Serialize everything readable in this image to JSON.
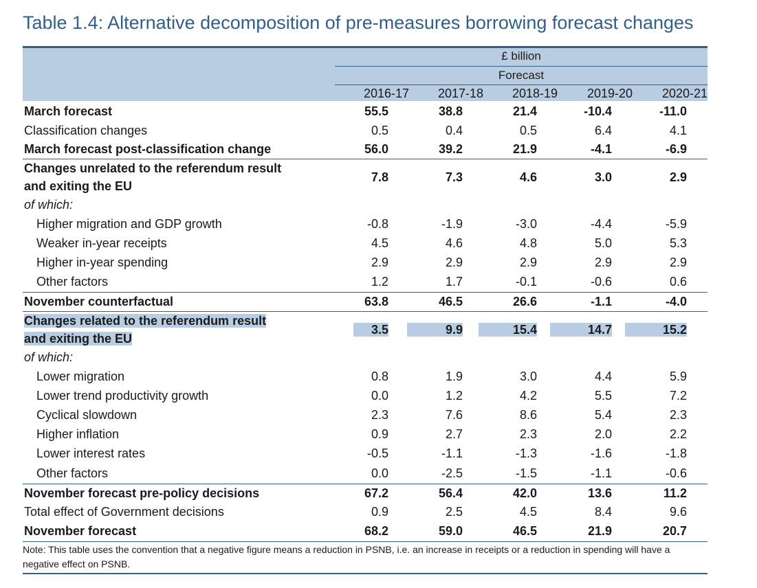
{
  "title": "Table 1.4: Alternative decomposition of pre-measures borrowing forecast changes",
  "header": {
    "unit": "£ billion",
    "forecast_label": "Forecast",
    "years": [
      "2016-17",
      "2017-18",
      "2018-19",
      "2019-20",
      "2020-21"
    ]
  },
  "rows": [
    {
      "label": "March forecast",
      "values": [
        "55.5",
        "38.8",
        "21.4",
        "-10.4",
        "-11.0"
      ]
    },
    {
      "label": "Classification changes",
      "values": [
        "0.5",
        "0.4",
        "0.5",
        "6.4",
        "4.1"
      ]
    },
    {
      "label": "March forecast post-classification change",
      "values": [
        "56.0",
        "39.2",
        "21.9",
        "-4.1",
        "-6.9"
      ]
    },
    {
      "label_line1": "Changes unrelated to the referendum result",
      "label_line2": "and exiting the EU",
      "values": [
        "7.8",
        "7.3",
        "4.6",
        "3.0",
        "2.9"
      ]
    },
    {
      "label": "of which:"
    },
    {
      "label": "Higher migration and GDP growth",
      "values": [
        "-0.8",
        "-1.9",
        "-3.0",
        "-4.4",
        "-5.9"
      ]
    },
    {
      "label": "Weaker in-year receipts",
      "values": [
        "4.5",
        "4.6",
        "4.8",
        "5.0",
        "5.3"
      ]
    },
    {
      "label": "Higher in-year spending",
      "values": [
        "2.9",
        "2.9",
        "2.9",
        "2.9",
        "2.9"
      ]
    },
    {
      "label": "Other factors",
      "values": [
        "1.2",
        "1.7",
        "-0.1",
        "-0.6",
        "0.6"
      ]
    },
    {
      "label": "November counterfactual",
      "values": [
        "63.8",
        "46.5",
        "26.6",
        "-1.1",
        "-4.0"
      ]
    },
    {
      "label_line1": "Changes related to the referendum result",
      "label_line2": "and exiting the EU",
      "values": [
        "3.5",
        "9.9",
        "15.4",
        "14.7",
        "15.2"
      ]
    },
    {
      "label": "of which:"
    },
    {
      "label": "Lower migration",
      "values": [
        "0.8",
        "1.9",
        "3.0",
        "4.4",
        "5.9"
      ]
    },
    {
      "label": "Lower trend productivity growth",
      "values": [
        "0.0",
        "1.2",
        "4.2",
        "5.5",
        "7.2"
      ]
    },
    {
      "label": "Cyclical slowdown",
      "values": [
        "2.3",
        "7.6",
        "8.6",
        "5.4",
        "2.3"
      ]
    },
    {
      "label": "Higher inflation",
      "values": [
        "0.9",
        "2.7",
        "2.3",
        "2.0",
        "2.2"
      ]
    },
    {
      "label": "Lower interest rates",
      "values": [
        "-0.5",
        "-1.1",
        "-1.3",
        "-1.6",
        "-1.8"
      ]
    },
    {
      "label": "Other factors",
      "values": [
        "0.0",
        "-2.5",
        "-1.5",
        "-1.1",
        "-0.6"
      ]
    },
    {
      "label": "November forecast pre-policy decisions",
      "values": [
        "67.2",
        "56.4",
        "42.0",
        "13.6",
        "11.2"
      ]
    },
    {
      "label": "Total effect of Government decisions",
      "values": [
        "0.9",
        "2.5",
        "4.5",
        "8.4",
        "9.6"
      ]
    },
    {
      "label": "November forecast",
      "values": [
        "68.2",
        "59.0",
        "46.5",
        "21.9",
        "20.7"
      ]
    }
  ],
  "note": "Note: This table uses the convention that a negative figure means a reduction in PSNB, i.e. an increase in receipts or a reduction in spending will have a negative effect on PSNB."
}
